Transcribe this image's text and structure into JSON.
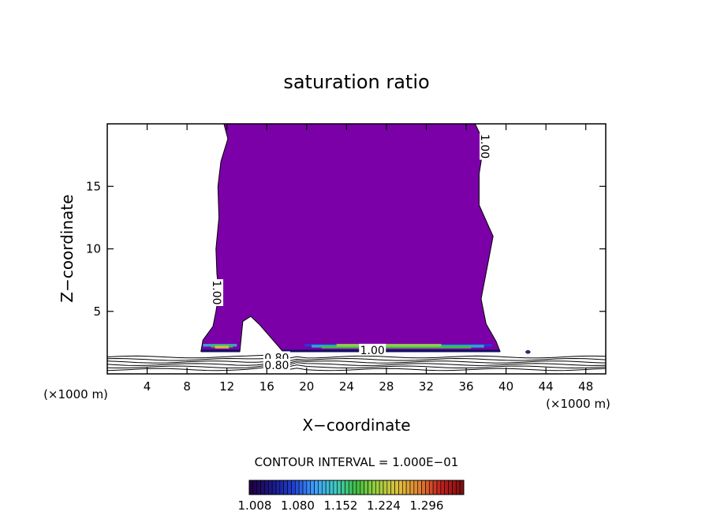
{
  "chart_data": {
    "type": "contour",
    "title": "saturation ratio",
    "xlabel": "X−coordinate",
    "ylabel": "Z−coordinate",
    "x_unit_left": "(×1000 m)",
    "x_unit_right": "(×1000 m)",
    "xlim": [
      0,
      50
    ],
    "ylim": [
      0,
      20
    ],
    "x_ticks": [
      4,
      8,
      12,
      16,
      20,
      24,
      28,
      32,
      36,
      40,
      44,
      48
    ],
    "y_ticks": [
      5,
      10,
      15
    ],
    "contour_interval_text": "CONTOUR INTERVAL = 1.000E−01",
    "contour_labels": [
      {
        "text": "1.00",
        "x": 37.9,
        "z": 18.2,
        "rot": 90
      },
      {
        "text": "1.00",
        "x": 11.0,
        "z": 6.5,
        "rot": 90
      },
      {
        "text": "1.00",
        "x": 26.6,
        "z": 1.9,
        "rot": 0
      },
      {
        "text": "0.80",
        "x": 17.0,
        "z": 1.3,
        "rot": 0
      },
      {
        "text": "0.80",
        "x": 17.0,
        "z": 0.7,
        "rot": 0
      }
    ],
    "saturated_region": {
      "left_edge": [
        [
          11.7,
          20
        ],
        [
          12.1,
          18.8
        ],
        [
          11.4,
          17
        ],
        [
          11.1,
          15
        ],
        [
          11.2,
          12.5
        ],
        [
          10.9,
          10
        ],
        [
          11.0,
          8
        ],
        [
          11.2,
          6.5
        ],
        [
          10.9,
          5
        ],
        [
          10.6,
          3.8
        ],
        [
          9.6,
          2.7
        ],
        [
          9.4,
          1.8
        ]
      ],
      "right_edge": [
        [
          36.9,
          20
        ],
        [
          37.8,
          18.5
        ],
        [
          37.3,
          16
        ],
        [
          37.3,
          13.5
        ],
        [
          38.7,
          11
        ],
        [
          38.1,
          8.5
        ],
        [
          37.5,
          6
        ],
        [
          38.0,
          4
        ],
        [
          39.0,
          2.6
        ],
        [
          39.4,
          1.8
        ]
      ],
      "bottom_gap_start": [
        13.3,
        1.8
      ],
      "bottom_gap_end": [
        17.6,
        1.8
      ]
    },
    "colorbar": {
      "labels": [
        "1.008",
        "1.080",
        "1.152",
        "1.224",
        "1.296"
      ],
      "colors": [
        "#220044",
        "#1a1a8a",
        "#2040d0",
        "#3fa0ff",
        "#40c8c0",
        "#40c040",
        "#a0d040",
        "#e0c040",
        "#e08030",
        "#c02020",
        "#801010"
      ]
    },
    "colors": {
      "saturated_fill": "#7b00a8",
      "background": "#ffffff"
    }
  }
}
